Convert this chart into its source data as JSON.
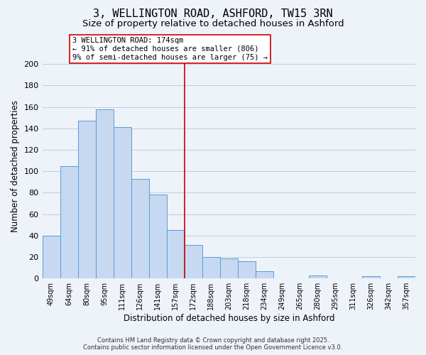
{
  "title": "3, WELLINGTON ROAD, ASHFORD, TW15 3RN",
  "subtitle": "Size of property relative to detached houses in Ashford",
  "xlabel": "Distribution of detached houses by size in Ashford",
  "ylabel": "Number of detached properties",
  "categories": [
    "49sqm",
    "64sqm",
    "80sqm",
    "95sqm",
    "111sqm",
    "126sqm",
    "141sqm",
    "157sqm",
    "172sqm",
    "188sqm",
    "203sqm",
    "218sqm",
    "234sqm",
    "249sqm",
    "265sqm",
    "280sqm",
    "295sqm",
    "311sqm",
    "326sqm",
    "342sqm",
    "357sqm"
  ],
  "values": [
    40,
    105,
    147,
    158,
    141,
    93,
    78,
    45,
    31,
    20,
    19,
    16,
    7,
    0,
    0,
    3,
    0,
    0,
    2,
    0,
    2
  ],
  "bar_color": "#c6d9f1",
  "bar_edge_color": "#5b9bd5",
  "grid_color": "#b8c8dc",
  "property_line_color": "#cc0000",
  "annotation_box_text": "3 WELLINGTON ROAD: 174sqm\n← 91% of detached houses are smaller (806)\n9% of semi-detached houses are larger (75) →",
  "ylim": [
    0,
    210
  ],
  "yticks": [
    0,
    20,
    40,
    60,
    80,
    100,
    120,
    140,
    160,
    180,
    200
  ],
  "footer_line1": "Contains HM Land Registry data © Crown copyright and database right 2025.",
  "footer_line2": "Contains public sector information licensed under the Open Government Licence v3.0.",
  "background_color": "#eef2f9",
  "title_fontsize": 11,
  "subtitle_fontsize": 9.5
}
